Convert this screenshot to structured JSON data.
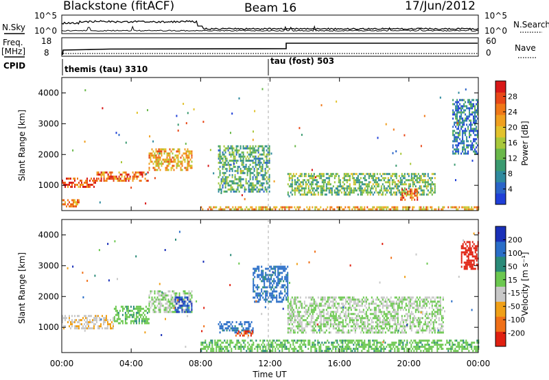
{
  "header": {
    "radar": "Blackstone (fitACF)",
    "beam": "Beam 16",
    "date": "17/Jun/2012"
  },
  "top_panels": {
    "nsky_label": "N.Sky",
    "nsearch_label": "N.Search",
    "noise_ticks_left": [
      "10^5",
      "10^0"
    ],
    "noise_ticks_right": [
      "10^5",
      "10^0"
    ],
    "freq_label_1": "Freq.",
    "freq_label_2": "[MHz]",
    "freq_ticks": [
      "18",
      "8"
    ],
    "nave_label": "Nave",
    "nave_ticks": [
      "60",
      "0"
    ],
    "cpid_label": "CPID",
    "cpid_1": "themis (tau) 3310",
    "cpid_2": "tau (fost) 503"
  },
  "axes": {
    "ylabel": "Slant Range [km]",
    "xlabel": "Time UT",
    "x_ticks": [
      "00:00",
      "04:00",
      "08:00",
      "12:00",
      "16:00",
      "20:00",
      "00:00"
    ],
    "y_ticks": [
      "1000",
      "2000",
      "3000",
      "4000"
    ]
  },
  "power_scale": {
    "label": "Power [dB]",
    "ticks": [
      "4",
      "8",
      "12",
      "16",
      "20",
      "24",
      "28"
    ],
    "colors": [
      "#1f3fd8",
      "#2a64c8",
      "#2f8a9e",
      "#3a9a70",
      "#6ab84a",
      "#a8c83a",
      "#e2c22c",
      "#f0a020",
      "#f07818",
      "#e84818",
      "#d81818"
    ]
  },
  "velocity_scale": {
    "label": "Velocity [m s⁻¹]",
    "ticks": [
      "200",
      "100",
      "50",
      "15",
      "-15",
      "-50",
      "-100",
      "-200"
    ],
    "colors": [
      "#1a30b8",
      "#2a6ec8",
      "#2a8a78",
      "#6cc850",
      "#c8c8c8",
      "#f0a018",
      "#f07018",
      "#e02010"
    ]
  },
  "chart_data": [
    {
      "type": "line",
      "title": "",
      "xlabel": "",
      "ylabel": "N.Sky",
      "x_range_hours": [
        0,
        24
      ],
      "description_series": [
        {
          "x": [
            0,
            2,
            4,
            6,
            7.5,
            8,
            12,
            16,
            20,
            24
          ],
          "y": [
            10000,
            30000,
            25000,
            8000,
            6000,
            50,
            20,
            15,
            15,
            20
          ]
        }
      ]
    },
    {
      "type": "line",
      "ylabel": "Freq. [MHz]",
      "ylim": [
        8,
        18
      ],
      "series": [
        {
          "x": [
            0,
            0.05,
            3.0,
            12.8,
            13.0,
            24
          ],
          "y": [
            8,
            10,
            10.5,
            11,
            14,
            14
          ]
        }
      ]
    },
    {
      "type": "heatmap",
      "ylabel": "Slant Range [km]",
      "xlabel": "Time UT",
      "x_range_hours": [
        0,
        24
      ],
      "ylim": [
        180,
        4500
      ],
      "colorbar": "Power [dB]",
      "clim": [
        0,
        30
      ],
      "regions": [
        {
          "t": [
            0.0,
            2.0
          ],
          "r": [
            950,
            1250
          ],
          "value": 26
        },
        {
          "t": [
            2.0,
            5.0
          ],
          "r": [
            1150,
            1450
          ],
          "value": 24
        },
        {
          "t": [
            5.0,
            7.5
          ],
          "r": [
            1500,
            2200
          ],
          "value": 20
        },
        {
          "t": [
            0.0,
            1.0
          ],
          "r": [
            300,
            550
          ],
          "value": 22
        },
        {
          "t": [
            9.0,
            12.0
          ],
          "r": [
            800,
            2300
          ],
          "value": 10
        },
        {
          "t": [
            13.0,
            21.5
          ],
          "r": [
            700,
            1400
          ],
          "value": 12
        },
        {
          "t": [
            19.5,
            20.5
          ],
          "r": [
            500,
            900
          ],
          "value": 24
        },
        {
          "t": [
            22.5,
            24.0
          ],
          "r": [
            2000,
            3800
          ],
          "value": 6
        },
        {
          "t": [
            8.0,
            24.0
          ],
          "r": [
            200,
            320
          ],
          "value": 20
        }
      ]
    },
    {
      "type": "heatmap",
      "ylabel": "Slant Range [km]",
      "xlabel": "Time UT",
      "x_range_hours": [
        0,
        24
      ],
      "ylim": [
        180,
        4500
      ],
      "colorbar": "Velocity [m s⁻¹]",
      "clim": [
        -200,
        200
      ],
      "regions": [
        {
          "t": [
            0.0,
            3.0
          ],
          "r": [
            950,
            1400
          ],
          "value": -40
        },
        {
          "t": [
            3.0,
            5.0
          ],
          "r": [
            1100,
            1700
          ],
          "value": 30
        },
        {
          "t": [
            5.0,
            7.5
          ],
          "r": [
            1500,
            2200
          ],
          "value": 0
        },
        {
          "t": [
            6.5,
            7.5
          ],
          "r": [
            1500,
            2000
          ],
          "value": 150
        },
        {
          "t": [
            9.0,
            11.0
          ],
          "r": [
            800,
            1200
          ],
          "value": 120
        },
        {
          "t": [
            10.0,
            11.0
          ],
          "r": [
            700,
            900
          ],
          "value": -150
        },
        {
          "t": [
            11.0,
            13.0
          ],
          "r": [
            1800,
            3000
          ],
          "value": 120
        },
        {
          "t": [
            13.0,
            22.0
          ],
          "r": [
            800,
            2000
          ],
          "value": 0
        },
        {
          "t": [
            8.0,
            24.0
          ],
          "r": [
            200,
            600
          ],
          "value": 30
        },
        {
          "t": [
            23.0,
            24.0
          ],
          "r": [
            2900,
            3800
          ],
          "value": -180
        }
      ]
    }
  ]
}
